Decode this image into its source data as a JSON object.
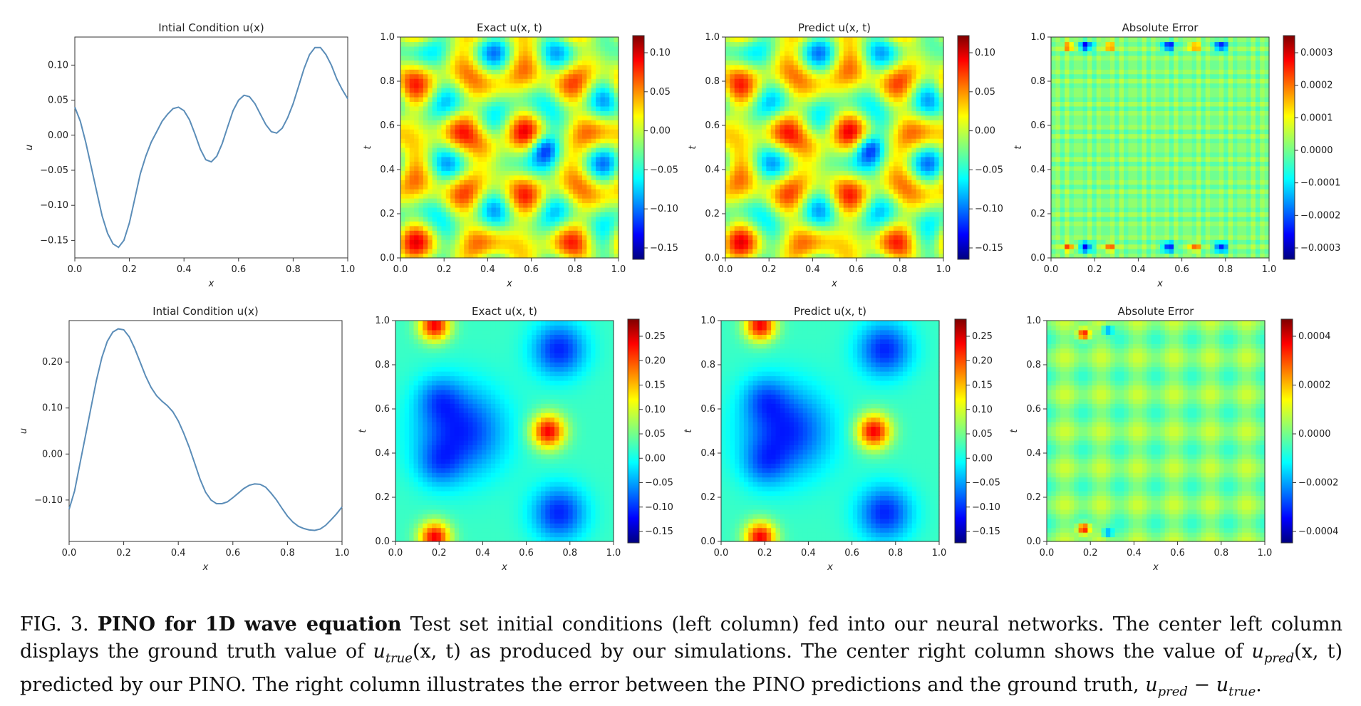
{
  "figure": {
    "rows": [
      {
        "ic_panel": {
          "title": "Intial Condition u(x)",
          "xlabel": "x",
          "ylabel": "u",
          "xlim": [
            0,
            1
          ],
          "ylim": [
            -0.175,
            0.14
          ],
          "xticks": [
            0.0,
            0.2,
            0.4,
            0.6,
            0.8,
            1.0
          ],
          "yticks": [
            -0.15,
            -0.1,
            -0.05,
            0.0,
            0.05,
            0.1
          ],
          "curve": [
            [
              0.0,
              0.04
            ],
            [
              0.02,
              0.02
            ],
            [
              0.04,
              -0.01
            ],
            [
              0.06,
              -0.045
            ],
            [
              0.08,
              -0.08
            ],
            [
              0.1,
              -0.115
            ],
            [
              0.12,
              -0.14
            ],
            [
              0.14,
              -0.155
            ],
            [
              0.16,
              -0.16
            ],
            [
              0.18,
              -0.15
            ],
            [
              0.2,
              -0.125
            ],
            [
              0.22,
              -0.09
            ],
            [
              0.24,
              -0.055
            ],
            [
              0.26,
              -0.03
            ],
            [
              0.28,
              -0.01
            ],
            [
              0.3,
              0.005
            ],
            [
              0.32,
              0.02
            ],
            [
              0.34,
              0.03
            ],
            [
              0.36,
              0.038
            ],
            [
              0.38,
              0.04
            ],
            [
              0.4,
              0.035
            ],
            [
              0.42,
              0.022
            ],
            [
              0.44,
              0.002
            ],
            [
              0.46,
              -0.02
            ],
            [
              0.48,
              -0.035
            ],
            [
              0.5,
              -0.038
            ],
            [
              0.52,
              -0.03
            ],
            [
              0.54,
              -0.012
            ],
            [
              0.56,
              0.012
            ],
            [
              0.58,
              0.035
            ],
            [
              0.6,
              0.05
            ],
            [
              0.62,
              0.057
            ],
            [
              0.64,
              0.055
            ],
            [
              0.66,
              0.045
            ],
            [
              0.68,
              0.03
            ],
            [
              0.7,
              0.015
            ],
            [
              0.72,
              0.005
            ],
            [
              0.74,
              0.003
            ],
            [
              0.76,
              0.01
            ],
            [
              0.78,
              0.025
            ],
            [
              0.8,
              0.045
            ],
            [
              0.82,
              0.07
            ],
            [
              0.84,
              0.095
            ],
            [
              0.86,
              0.115
            ],
            [
              0.88,
              0.125
            ],
            [
              0.9,
              0.125
            ],
            [
              0.92,
              0.115
            ],
            [
              0.94,
              0.1
            ],
            [
              0.96,
              0.08
            ],
            [
              0.98,
              0.065
            ],
            [
              1.0,
              0.052
            ]
          ]
        },
        "exact_panel": {
          "title": "Exact u(x, t)",
          "xlabel": "x",
          "ylabel": "t",
          "xticks": [
            0.0,
            0.2,
            0.4,
            0.6,
            0.8,
            1.0
          ],
          "yticks": [
            0.0,
            0.2,
            0.4,
            0.6,
            0.8,
            1.0
          ],
          "colorbar_ticks": [
            "0.10",
            "0.05",
            "0.00",
            "−0.05",
            "−0.10",
            "−0.15"
          ]
        },
        "pred_panel": {
          "title": "Predict u(x, t)",
          "xlabel": "x",
          "ylabel": "t",
          "xticks": [
            0.0,
            0.2,
            0.4,
            0.6,
            0.8,
            1.0
          ],
          "yticks": [
            0.0,
            0.2,
            0.4,
            0.6,
            0.8,
            1.0
          ],
          "colorbar_ticks": [
            "0.10",
            "0.05",
            "0.00",
            "−0.05",
            "−0.10",
            "−0.15"
          ]
        },
        "error_panel": {
          "title": "Absolute Error",
          "xlabel": "x",
          "ylabel": "t",
          "xticks": [
            0.0,
            0.2,
            0.4,
            0.6,
            0.8,
            1.0
          ],
          "yticks": [
            0.0,
            0.2,
            0.4,
            0.6,
            0.8,
            1.0
          ],
          "colorbar_ticks": [
            "0.0003",
            "0.0002",
            "0.0001",
            "0.0000",
            "−0.0001",
            "−0.0002",
            "−0.0003"
          ]
        }
      },
      {
        "ic_panel": {
          "title": "Intial Condition u(x)",
          "xlabel": "x",
          "ylabel": "u",
          "xlim": [
            0,
            1
          ],
          "ylim": [
            -0.19,
            0.29
          ],
          "xticks": [
            0.0,
            0.2,
            0.4,
            0.6,
            0.8,
            1.0
          ],
          "yticks": [
            -0.1,
            0.0,
            0.1,
            0.2
          ],
          "curve": [
            [
              0.0,
              -0.12
            ],
            [
              0.02,
              -0.08
            ],
            [
              0.04,
              -0.02
            ],
            [
              0.06,
              0.04
            ],
            [
              0.08,
              0.1
            ],
            [
              0.1,
              0.16
            ],
            [
              0.12,
              0.21
            ],
            [
              0.14,
              0.245
            ],
            [
              0.16,
              0.265
            ],
            [
              0.18,
              0.272
            ],
            [
              0.2,
              0.27
            ],
            [
              0.22,
              0.255
            ],
            [
              0.24,
              0.23
            ],
            [
              0.26,
              0.2
            ],
            [
              0.28,
              0.17
            ],
            [
              0.3,
              0.145
            ],
            [
              0.32,
              0.127
            ],
            [
              0.34,
              0.115
            ],
            [
              0.36,
              0.105
            ],
            [
              0.38,
              0.092
            ],
            [
              0.4,
              0.072
            ],
            [
              0.42,
              0.045
            ],
            [
              0.44,
              0.015
            ],
            [
              0.46,
              -0.02
            ],
            [
              0.48,
              -0.055
            ],
            [
              0.5,
              -0.083
            ],
            [
              0.52,
              -0.1
            ],
            [
              0.54,
              -0.108
            ],
            [
              0.56,
              -0.108
            ],
            [
              0.58,
              -0.104
            ],
            [
              0.6,
              -0.095
            ],
            [
              0.62,
              -0.085
            ],
            [
              0.64,
              -0.075
            ],
            [
              0.66,
              -0.068
            ],
            [
              0.68,
              -0.065
            ],
            [
              0.7,
              -0.066
            ],
            [
              0.72,
              -0.072
            ],
            [
              0.74,
              -0.085
            ],
            [
              0.76,
              -0.1
            ],
            [
              0.78,
              -0.118
            ],
            [
              0.8,
              -0.135
            ],
            [
              0.82,
              -0.148
            ],
            [
              0.84,
              -0.157
            ],
            [
              0.86,
              -0.162
            ],
            [
              0.88,
              -0.165
            ],
            [
              0.9,
              -0.166
            ],
            [
              0.92,
              -0.163
            ],
            [
              0.94,
              -0.155
            ],
            [
              0.96,
              -0.143
            ],
            [
              0.98,
              -0.13
            ],
            [
              1.0,
              -0.115
            ]
          ]
        },
        "exact_panel": {
          "title": "Exact u(x, t)",
          "xlabel": "x",
          "ylabel": "t",
          "xticks": [
            0.0,
            0.2,
            0.4,
            0.6,
            0.8,
            1.0
          ],
          "yticks": [
            0.0,
            0.2,
            0.4,
            0.6,
            0.8,
            1.0
          ],
          "colorbar_ticks": [
            "0.25",
            "0.20",
            "0.15",
            "0.10",
            "0.05",
            "0.00",
            "−0.05",
            "−0.10",
            "−0.15"
          ]
        },
        "pred_panel": {
          "title": "Predict u(x, t)",
          "xlabel": "x",
          "ylabel": "t",
          "xticks": [
            0.0,
            0.2,
            0.4,
            0.6,
            0.8,
            1.0
          ],
          "yticks": [
            0.0,
            0.2,
            0.4,
            0.6,
            0.8,
            1.0
          ],
          "colorbar_ticks": [
            "0.25",
            "0.20",
            "0.15",
            "0.10",
            "0.05",
            "0.00",
            "−0.05",
            "−0.10",
            "−0.15"
          ]
        },
        "error_panel": {
          "title": "Absolute Error",
          "xlabel": "x",
          "ylabel": "t",
          "xticks": [
            0.0,
            0.2,
            0.4,
            0.6,
            0.8,
            1.0
          ],
          "yticks": [
            0.0,
            0.2,
            0.4,
            0.6,
            0.8,
            1.0
          ],
          "colorbar_ticks": [
            "0.0004",
            "0.0002",
            "0.0000",
            "−0.0002",
            "−0.0004"
          ]
        }
      }
    ]
  },
  "caption": {
    "fig_label": "FIG. 3.",
    "bold_title": "PINO for 1D wave equation",
    "text1": "Test set initial conditions (left column) fed into our neural networks. The center left column displays the ground truth value of",
    "u_true_xt": "u",
    "u_true_sub": "true",
    "args": "(x, t)",
    "text2": "as produced by our simulations. The center right column shows the value of",
    "u_pred_xt": "u",
    "u_pred_sub": "pred",
    "text3": "predicted by our PINO. The right column illustrates the error between the PINO predictions and the ground truth,",
    "minus": "−",
    "end": "."
  },
  "colors": {
    "curve": "#5b8db8",
    "axis": "#333333",
    "text": "#222222"
  }
}
